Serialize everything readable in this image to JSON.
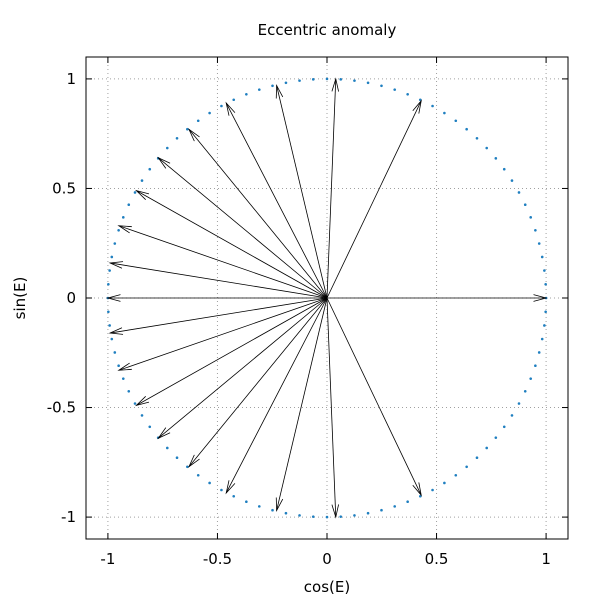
{
  "chart_data": {
    "type": "scatter",
    "title": "Eccentric anomaly",
    "xlabel": "cos(E)",
    "ylabel": "sin(E)",
    "xlim": [
      -1.1,
      1.1
    ],
    "ylim": [
      -1.1,
      1.1
    ],
    "xticks": [
      -1,
      -0.5,
      0,
      0.5,
      1
    ],
    "yticks": [
      -1,
      -0.5,
      0,
      0.5,
      1
    ],
    "xtick_labels": [
      "-1",
      "-0.5",
      "0",
      "0.5",
      "1"
    ],
    "ytick_labels": [
      "-1",
      "-0.5",
      "0",
      "0.5",
      "1"
    ],
    "grid": true,
    "circle": {
      "cx": 0,
      "cy": 0,
      "r": 1,
      "style": "dotted",
      "color": "#1f7fc0"
    },
    "arrow_origin": [
      0,
      0
    ],
    "arrows": [
      [
        1.0,
        0.0
      ],
      [
        0.43,
        0.9
      ],
      [
        0.04,
        1.0
      ],
      [
        -0.23,
        0.97
      ],
      [
        -0.46,
        0.89
      ],
      [
        -0.63,
        0.77
      ],
      [
        -0.77,
        0.64
      ],
      [
        -0.87,
        0.49
      ],
      [
        -0.95,
        0.33
      ],
      [
        -0.99,
        0.16
      ],
      [
        -1.0,
        0.0
      ],
      [
        -0.99,
        -0.16
      ],
      [
        -0.95,
        -0.33
      ],
      [
        -0.87,
        -0.49
      ],
      [
        -0.77,
        -0.64
      ],
      [
        -0.63,
        -0.77
      ],
      [
        -0.46,
        -0.89
      ],
      [
        -0.23,
        -0.97
      ],
      [
        0.04,
        -1.0
      ],
      [
        0.43,
        -0.9
      ]
    ],
    "arrow_color": "#000000"
  }
}
